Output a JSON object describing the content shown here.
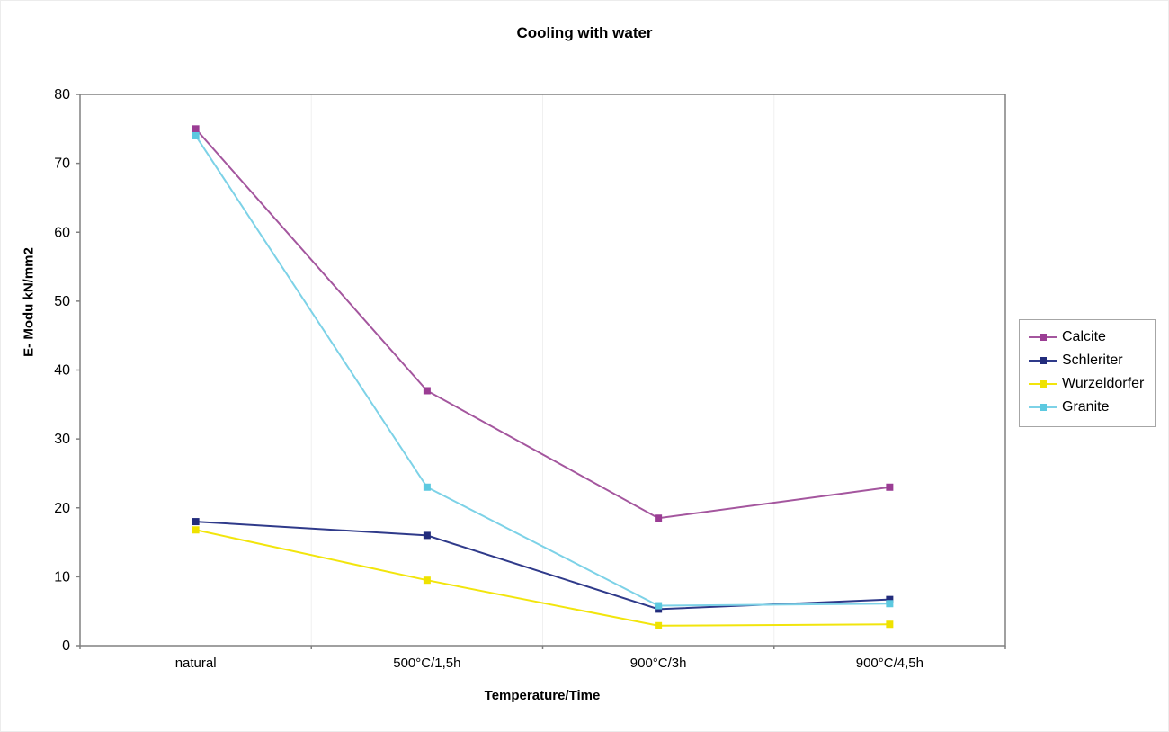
{
  "page": {
    "background_color": "#ffffff",
    "outer_border_color": "#ececec"
  },
  "chart_data": {
    "type": "line",
    "title": "Cooling with water",
    "xlabel": "Temperature/Time",
    "ylabel": "E- Modu kN/mm2",
    "categories": [
      "natural",
      "500°C/1,5h",
      "900°C/3h",
      "900°C/4,5h"
    ],
    "series": [
      {
        "name": "Calcite",
        "values": [
          75,
          37,
          18.5,
          23
        ],
        "line_color": "#a4569e",
        "marker_color": "#9b3d94"
      },
      {
        "name": "Schleriter",
        "values": [
          18,
          16,
          5.3,
          6.7
        ],
        "line_color": "#2f3a8a",
        "marker_color": "#222c7c"
      },
      {
        "name": "Wurzeldorfer",
        "values": [
          16.8,
          9.5,
          2.9,
          3.1
        ],
        "line_color": "#f2e50c",
        "marker_color": "#efe200"
      },
      {
        "name": "Granite",
        "values": [
          74,
          23,
          5.8,
          6.1
        ],
        "line_color": "#7dd2e7",
        "marker_color": "#5cc9e0"
      }
    ],
    "ylim": [
      0,
      80
    ],
    "yticks": [
      0,
      10,
      20,
      30,
      40,
      50,
      60,
      70,
      80
    ],
    "grid": "vertical-category-boundaries-only",
    "grid_color": "#f0f0f0",
    "axis_color": "#808080",
    "tick_label_color": "#000000",
    "legend_position": "right",
    "marker_shape": "square"
  }
}
